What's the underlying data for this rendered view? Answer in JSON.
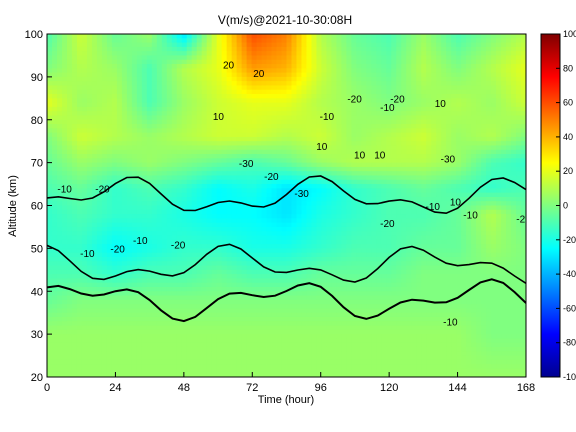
{
  "chart_data": {
    "type": "heatmap",
    "title": "V(m/s)@2021-10-30:08H",
    "xlabel": "Time (hour)",
    "ylabel": "Altitude (km)",
    "xlim": [
      0,
      168
    ],
    "ylim": [
      20,
      100
    ],
    "xticks": [
      0,
      24,
      48,
      72,
      96,
      120,
      144,
      168
    ],
    "yticks": [
      20,
      30,
      40,
      50,
      60,
      70,
      80,
      90,
      100
    ],
    "colorbar": {
      "range": [
        -100,
        100
      ],
      "ticks": [
        "100",
        "80",
        "60",
        "40",
        "20",
        "0",
        "-20",
        "-40",
        "-60",
        "-80",
        "-100"
      ],
      "colormap": "jet"
    },
    "contour_labels": [
      {
        "text": "-10",
        "x": 16,
        "y": 48
      },
      {
        "text": "-20",
        "x": 28,
        "y": 49
      },
      {
        "text": "-10",
        "x": 37,
        "y": 51
      },
      {
        "text": "-20",
        "x": 52,
        "y": 50
      },
      {
        "text": "-20",
        "x": 22,
        "y": 63
      },
      {
        "text": "-30",
        "x": 79,
        "y": 69
      },
      {
        "text": "-20",
        "x": 89,
        "y": 66
      },
      {
        "text": "-30",
        "x": 101,
        "y": 62
      },
      {
        "text": "-20",
        "x": 135,
        "y": 55
      },
      {
        "text": "-10",
        "x": 153,
        "y": 59
      },
      {
        "text": "-10",
        "x": 168,
        "y": 57
      },
      {
        "text": "-20",
        "x": 189,
        "y": 56
      },
      {
        "text": "-10",
        "x": 7,
        "y": 63
      },
      {
        "text": "10",
        "x": 109,
        "y": 73
      },
      {
        "text": "10",
        "x": 124,
        "y": 71
      },
      {
        "text": "-10",
        "x": 111,
        "y": 80
      },
      {
        "text": "-20",
        "x": 122,
        "y": 84
      },
      {
        "text": "-10",
        "x": 135,
        "y": 82
      },
      {
        "text": "-20",
        "x": 139,
        "y": 84
      },
      {
        "text": "10",
        "x": 132,
        "y": 71
      },
      {
        "text": "-30",
        "x": 159,
        "y": 70
      },
      {
        "text": "10",
        "x": 156,
        "y": 83
      },
      {
        "text": "10",
        "x": 162,
        "y": 60
      },
      {
        "text": "-10",
        "x": 160,
        "y": 32
      },
      {
        "text": "10",
        "x": 68,
        "y": 80
      },
      {
        "text": "20",
        "x": 72,
        "y": 92
      },
      {
        "text": "20",
        "x": 84,
        "y": 90
      }
    ],
    "data": {
      "x_hours": [
        0,
        12,
        24,
        36,
        48,
        60,
        72,
        84,
        96,
        108,
        120,
        132,
        144,
        156,
        168
      ],
      "z_rows": [
        {
          "alt": 100,
          "v": [
            -10,
            15,
            -5,
            5,
            -30,
            20,
            60,
            50,
            10,
            -5,
            -10,
            5,
            -10,
            0,
            10
          ]
        },
        {
          "alt": 92,
          "v": [
            0,
            10,
            5,
            -10,
            10,
            20,
            45,
            40,
            15,
            0,
            -5,
            10,
            0,
            10,
            20
          ]
        },
        {
          "alt": 84,
          "v": [
            20,
            5,
            10,
            -10,
            5,
            15,
            20,
            20,
            10,
            5,
            0,
            5,
            10,
            5,
            15
          ]
        },
        {
          "alt": 76,
          "v": [
            0,
            15,
            10,
            5,
            10,
            15,
            15,
            10,
            15,
            5,
            10,
            15,
            5,
            10,
            0
          ]
        },
        {
          "alt": 70,
          "v": [
            -5,
            5,
            0,
            5,
            0,
            -5,
            -10,
            -5,
            5,
            10,
            10,
            10,
            5,
            -10,
            -15
          ]
        },
        {
          "alt": 64,
          "v": [
            -10,
            -5,
            -15,
            -10,
            -15,
            -25,
            -20,
            -30,
            -25,
            -15,
            -10,
            -5,
            -10,
            -15,
            -10
          ]
        },
        {
          "alt": 58,
          "v": [
            -15,
            -10,
            -15,
            -15,
            -20,
            -25,
            -25,
            -30,
            -20,
            -15,
            -10,
            -10,
            -5,
            10,
            -5
          ]
        },
        {
          "alt": 50,
          "v": [
            -15,
            -15,
            -25,
            -20,
            -15,
            -15,
            -20,
            -20,
            -15,
            -10,
            -10,
            -5,
            -5,
            5,
            0
          ]
        },
        {
          "alt": 44,
          "v": [
            -10,
            -10,
            -15,
            -10,
            -10,
            -5,
            -10,
            -10,
            -5,
            -5,
            -5,
            0,
            0,
            0,
            0
          ]
        },
        {
          "alt": 38,
          "v": [
            -5,
            0,
            0,
            0,
            0,
            0,
            0,
            0,
            0,
            0,
            0,
            0,
            0,
            0,
            0
          ]
        },
        {
          "alt": 30,
          "v": [
            5,
            5,
            5,
            5,
            5,
            5,
            5,
            5,
            5,
            5,
            5,
            5,
            5,
            0,
            0
          ]
        },
        {
          "alt": 20,
          "v": [
            5,
            5,
            5,
            5,
            5,
            5,
            5,
            5,
            5,
            5,
            5,
            5,
            5,
            5,
            5
          ]
        }
      ]
    }
  }
}
